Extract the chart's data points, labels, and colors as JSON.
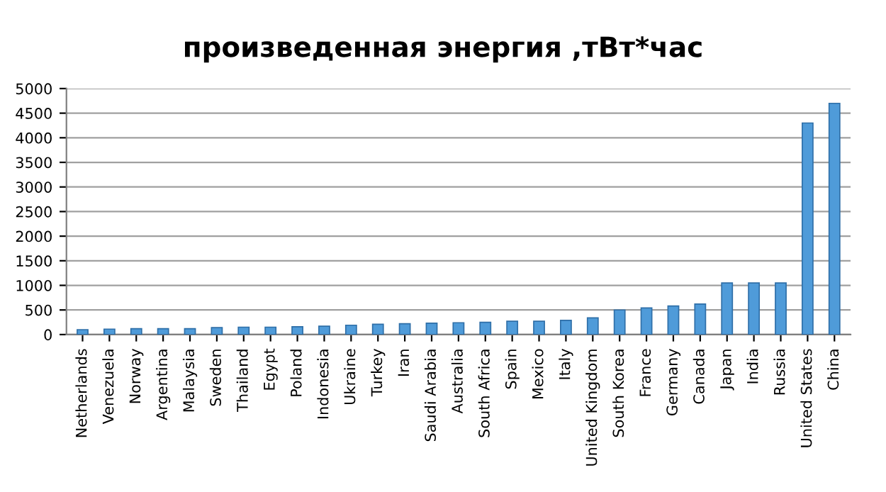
{
  "chart_data": {
    "type": "bar",
    "title": "произведенная энергия ,тВт*час",
    "categories": [
      "Netherlands",
      "Venezuela",
      "Norway",
      "Argentina",
      "Malaysia",
      "Sweden",
      "Thailand",
      "Egypt",
      "Poland",
      "Indonesia",
      "Ukraine",
      "Turkey",
      "Iran",
      "Saudi Arabia",
      "Australia",
      "South Africa",
      "Spain",
      "Mexico",
      "Italy",
      "United Kingdom",
      "South Korea",
      "France",
      "Germany",
      "Canada",
      "Japan",
      "India",
      "Russia",
      "United States",
      "China"
    ],
    "values": [
      100,
      110,
      120,
      120,
      120,
      140,
      150,
      150,
      160,
      170,
      190,
      210,
      220,
      230,
      240,
      250,
      270,
      270,
      290,
      340,
      500,
      540,
      580,
      620,
      1050,
      1050,
      1050,
      4300,
      4700
    ],
    "color": "#4f9bd9",
    "ylim": [
      0,
      5000
    ],
    "yticks": [
      0,
      500,
      1000,
      1500,
      2000,
      2500,
      3000,
      3500,
      4000,
      4500,
      5000
    ],
    "grid": "y"
  }
}
